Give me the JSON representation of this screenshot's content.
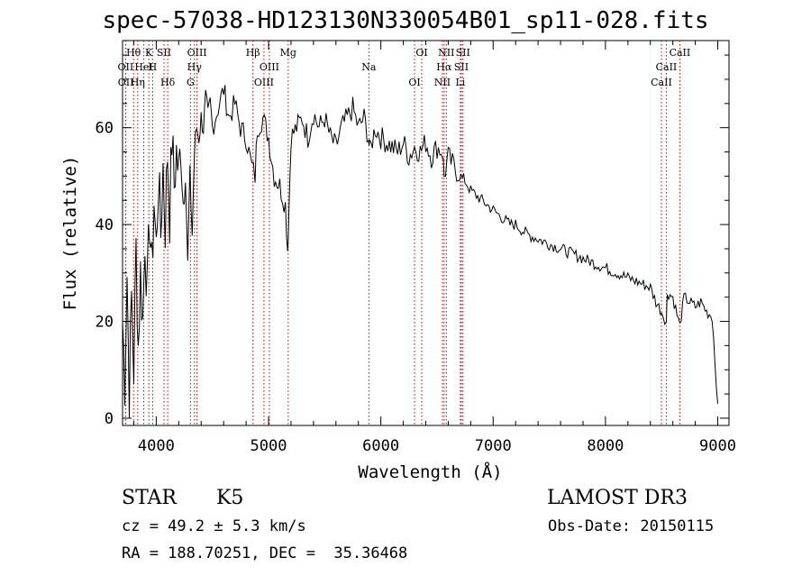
{
  "chart_data": {
    "type": "line",
    "title": "spec-57038-HD123130N330054B01_sp11-028.fits",
    "xlabel": "Wavelength (Å)",
    "ylabel": "Flux (relative)",
    "xlim": [
      3700,
      9100
    ],
    "ylim": [
      -1.5,
      78
    ],
    "xticks": [
      4000,
      5000,
      6000,
      7000,
      8000,
      9000
    ],
    "yticks": [
      0,
      20,
      40,
      60
    ],
    "series": [
      {
        "name": "flux",
        "x": [
          3700,
          3720,
          3740,
          3760,
          3780,
          3800,
          3820,
          3840,
          3860,
          3880,
          3900,
          3920,
          3940,
          3960,
          3980,
          4000,
          4020,
          4040,
          4060,
          4080,
          4100,
          4120,
          4140,
          4160,
          4180,
          4200,
          4220,
          4240,
          4260,
          4280,
          4300,
          4320,
          4340,
          4360,
          4380,
          4400,
          4420,
          4440,
          4460,
          4480,
          4500,
          4550,
          4600,
          4650,
          4700,
          4750,
          4800,
          4850,
          4880,
          4900,
          4950,
          5000,
          5050,
          5100,
          5150,
          5170,
          5180,
          5200,
          5250,
          5300,
          5350,
          5400,
          5450,
          5500,
          5550,
          5600,
          5650,
          5700,
          5750,
          5800,
          5850,
          5890,
          5900,
          5950,
          6000,
          6050,
          6100,
          6150,
          6200,
          6250,
          6300,
          6350,
          6400,
          6450,
          6500,
          6550,
          6563,
          6600,
          6650,
          6700,
          6750,
          6800,
          6850,
          6900,
          6950,
          7000,
          7050,
          7100,
          7150,
          7200,
          7300,
          7400,
          7500,
          7600,
          7700,
          7800,
          7900,
          8000,
          8100,
          8200,
          8300,
          8400,
          8450,
          8500,
          8542,
          8550,
          8600,
          8662,
          8700,
          8750,
          8800,
          8850,
          8900,
          8950,
          9000
        ],
        "values": [
          20,
          8,
          30,
          5,
          25,
          10,
          35,
          15,
          30,
          20,
          38,
          25,
          42,
          30,
          45,
          35,
          50,
          38,
          52,
          40,
          55,
          42,
          58,
          48,
          55,
          50,
          57,
          45,
          55,
          30,
          50,
          38,
          55,
          60,
          58,
          62,
          60,
          66,
          62,
          65,
          60,
          64,
          68,
          62,
          65,
          60,
          58,
          52,
          50,
          60,
          62,
          58,
          50,
          48,
          44,
          35,
          42,
          58,
          60,
          62,
          58,
          63,
          60,
          62,
          58,
          56,
          60,
          62,
          64,
          60,
          62,
          58,
          55,
          60,
          58,
          57,
          56,
          55,
          57,
          54,
          56,
          55,
          57,
          54,
          56,
          55,
          50,
          54,
          52,
          50,
          49,
          47,
          46,
          45,
          44,
          43,
          42,
          41,
          40,
          40,
          38,
          37,
          36,
          35,
          34,
          33,
          32,
          31,
          30,
          29,
          28,
          27,
          24,
          22,
          20,
          26,
          25,
          19,
          25,
          24,
          23,
          24,
          22,
          21,
          3
        ]
      }
    ],
    "lines": [
      {
        "label": "Hθ",
        "x": 3798
      },
      {
        "label": "OII",
        "x": 3727
      },
      {
        "label": "OII",
        "x": 3729
      },
      {
        "label": "K",
        "x": 3934
      },
      {
        "label": "HeI",
        "x": 3889
      },
      {
        "label": "Hη",
        "x": 3835
      },
      {
        "label": "SII",
        "x": 4069
      },
      {
        "label": "H",
        "x": 3968
      },
      {
        "label": "Hδ",
        "x": 4102
      },
      {
        "label": "OIII",
        "x": 4363
      },
      {
        "label": "Hγ",
        "x": 4340
      },
      {
        "label": "G",
        "x": 4305
      },
      {
        "label": "Hβ",
        "x": 4861
      },
      {
        "label": "OIII",
        "x": 5007
      },
      {
        "label": "OIII",
        "x": 4959
      },
      {
        "label": "Mg",
        "x": 5175
      },
      {
        "label": "Na",
        "x": 5893
      },
      {
        "label": "OI",
        "x": 6300
      },
      {
        "label": "OI",
        "x": 6364
      },
      {
        "label": "Hα",
        "x": 6563
      },
      {
        "label": "NII",
        "x": 6548
      },
      {
        "label": "NII",
        "x": 6583
      },
      {
        "label": "SII",
        "x": 6717
      },
      {
        "label": "Li",
        "x": 6708
      },
      {
        "label": "SII",
        "x": 6731
      },
      {
        "label": "CaII",
        "x": 8542
      },
      {
        "label": "CaII",
        "x": 8498
      },
      {
        "label": "CaII",
        "x": 8662
      }
    ]
  },
  "info": {
    "class": "STAR",
    "subclass": "K5",
    "survey": "LAMOST DR3",
    "cz": "cz = 49.2 ± 5.3 km/s",
    "obs_date": "Obs-Date: 20150115",
    "radec": "RA = 188.70251, DEC =  35.36468"
  }
}
